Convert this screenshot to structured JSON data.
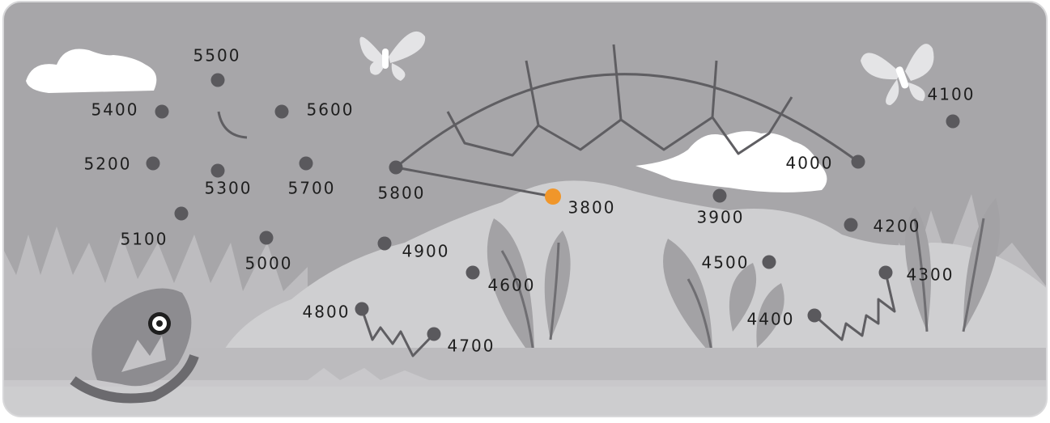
{
  "dots": [
    {
      "label": "5500"
    },
    {
      "label": "5400"
    },
    {
      "label": "5600"
    },
    {
      "label": "5200"
    },
    {
      "label": "5300"
    },
    {
      "label": "5700"
    },
    {
      "label": "5800"
    },
    {
      "label": "5100"
    },
    {
      "label": "5000"
    },
    {
      "label": "4900"
    },
    {
      "label": "4600"
    },
    {
      "label": "4800"
    },
    {
      "label": "4700"
    },
    {
      "label": "3800"
    },
    {
      "label": "3900"
    },
    {
      "label": "4000"
    },
    {
      "label": "4100"
    },
    {
      "label": "4200"
    },
    {
      "label": "4500"
    },
    {
      "label": "4300"
    },
    {
      "label": "4400"
    }
  ]
}
